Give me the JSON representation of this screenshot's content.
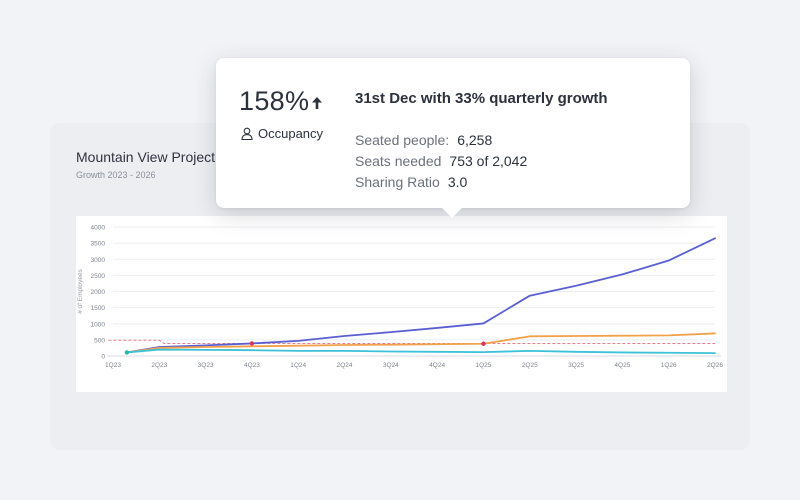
{
  "card": {
    "title": "Mountain View Project",
    "subtitle": "Growth 2023 - 2026"
  },
  "tooltip": {
    "value": "158%",
    "trend_icon": "arrow-up-icon",
    "category_icon": "user-icon",
    "category": "Occupancy",
    "headline": "31st Dec with 33% quarterly growth",
    "stats": [
      {
        "label": "Seated people:",
        "value": "6,258"
      },
      {
        "label": "Seats needed",
        "value": "753 of 2,042"
      },
      {
        "label": "Sharing Ratio",
        "value": "3.0"
      }
    ]
  },
  "chart_data": {
    "type": "line",
    "ylabel": "# of Employees",
    "ylim": [
      0,
      4000
    ],
    "yticks": [
      0,
      500,
      1000,
      1500,
      2000,
      2500,
      3000,
      3500,
      4000
    ],
    "categories": [
      "1Q23",
      "2Q23",
      "3Q23",
      "4Q23",
      "1Q24",
      "2Q24",
      "3Q24",
      "4Q24",
      "1Q25",
      "2Q25",
      "3Q25",
      "4Q25",
      "1Q26",
      "2Q26"
    ],
    "series": [
      {
        "name": "Purple",
        "color": "#5a5fd3",
        "x": [
          0.3,
          1,
          2,
          3,
          4,
          5,
          6,
          7,
          8,
          9,
          10,
          11,
          12,
          13
        ],
        "values": [
          110,
          280,
          330,
          390,
          470,
          620,
          740,
          870,
          1010,
          1870,
          2180,
          2530,
          2960,
          3650
        ]
      },
      {
        "name": "Orange",
        "color": "#f2a14b",
        "x": [
          0.3,
          1,
          2,
          3,
          4,
          5,
          6,
          7,
          8,
          9,
          10,
          11,
          12,
          13
        ],
        "values": [
          110,
          250,
          280,
          300,
          320,
          340,
          350,
          365,
          380,
          610,
          620,
          630,
          640,
          700
        ]
      },
      {
        "name": "Teal",
        "color": "#3cc1d8",
        "x": [
          0.3,
          1,
          2,
          3,
          4,
          5,
          6,
          7,
          8,
          9,
          10,
          11,
          12,
          13
        ],
        "values": [
          110,
          200,
          190,
          180,
          160,
          160,
          140,
          130,
          120,
          160,
          130,
          110,
          100,
          90
        ]
      }
    ],
    "reference_lines": [
      {
        "name": "Pink dashed",
        "color": "#e26b7d",
        "x": [
          -0.1,
          1,
          1.1,
          13
        ],
        "values": [
          490,
          490,
          390,
          390
        ]
      }
    ],
    "markers": [
      {
        "x": 0.3,
        "value": 110,
        "color": "#25b7a7"
      },
      {
        "x": 3.0,
        "value": 390,
        "color": "#d9345e"
      },
      {
        "x": 8.0,
        "value": 380,
        "color": "#d9345e"
      }
    ],
    "grid": true
  }
}
